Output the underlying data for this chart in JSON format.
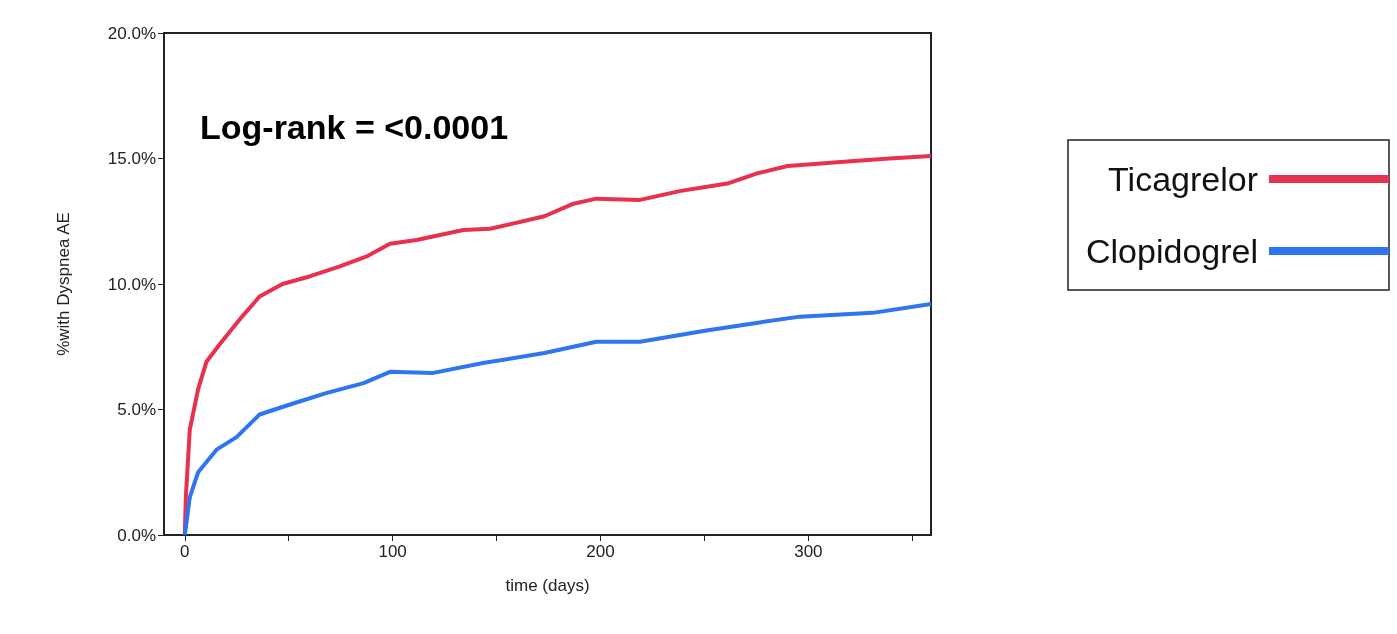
{
  "chart_data": {
    "type": "line",
    "xlabel": "time (days)",
    "ylabel": "%with Dyspnea AE",
    "annotations": [
      "Log-rank = <0.0001"
    ],
    "xlim": [
      -10,
      359
    ],
    "xticks": [
      0,
      {
        "value": 50,
        "label": null
      },
      100,
      {
        "value": 150,
        "label": null
      },
      200,
      {
        "value": 250,
        "label": null
      },
      300,
      {
        "value": 350,
        "label": null
      }
    ],
    "ylim": [
      0,
      20
    ],
    "yticks": [
      {
        "value": 0,
        "label": "0.0%"
      },
      {
        "value": 5,
        "label": "5.0%"
      },
      {
        "value": 10,
        "label": "10.0%"
      },
      {
        "value": 15,
        "label": "15.0%"
      },
      {
        "value": 20,
        "label": "20.0%"
      }
    ],
    "grid": false,
    "legend": "right",
    "marker": "none",
    "line_style": "solid",
    "series": [
      {
        "name": "Ticagrelor",
        "color": "#e8304f",
        "x": [
          0,
          0.5,
          2.4,
          6.4,
          10.4,
          16.8,
          26.5,
          36,
          47,
          60,
          74.6,
          87.5,
          98.7,
          111.5,
          134,
          147,
          173,
          187,
          198,
          219,
          238,
          261,
          275,
          290,
          322,
          339,
          359
        ],
        "values": [
          0,
          1.5,
          4.2,
          5.8,
          6.9,
          7.6,
          8.6,
          9.5,
          10.0,
          10.3,
          10.7,
          11.1,
          11.6,
          11.75,
          12.15,
          12.2,
          12.7,
          13.2,
          13.4,
          13.35,
          13.7,
          14.0,
          14.4,
          14.7,
          14.9,
          15.0,
          15.1
        ]
      },
      {
        "name": "Clopidogrel",
        "color": "#2f74f0",
        "x": [
          0,
          2.4,
          6.4,
          15.3,
          24.9,
          36,
          50.6,
          68,
          86,
          98.7,
          119,
          143.5,
          173,
          198,
          219,
          251,
          275,
          296,
          331,
          359
        ],
        "values": [
          0,
          1.5,
          2.5,
          3.4,
          3.9,
          4.8,
          5.2,
          5.65,
          6.05,
          6.5,
          6.45,
          6.85,
          7.25,
          7.7,
          7.7,
          8.15,
          8.45,
          8.7,
          8.85,
          9.2
        ]
      }
    ]
  }
}
